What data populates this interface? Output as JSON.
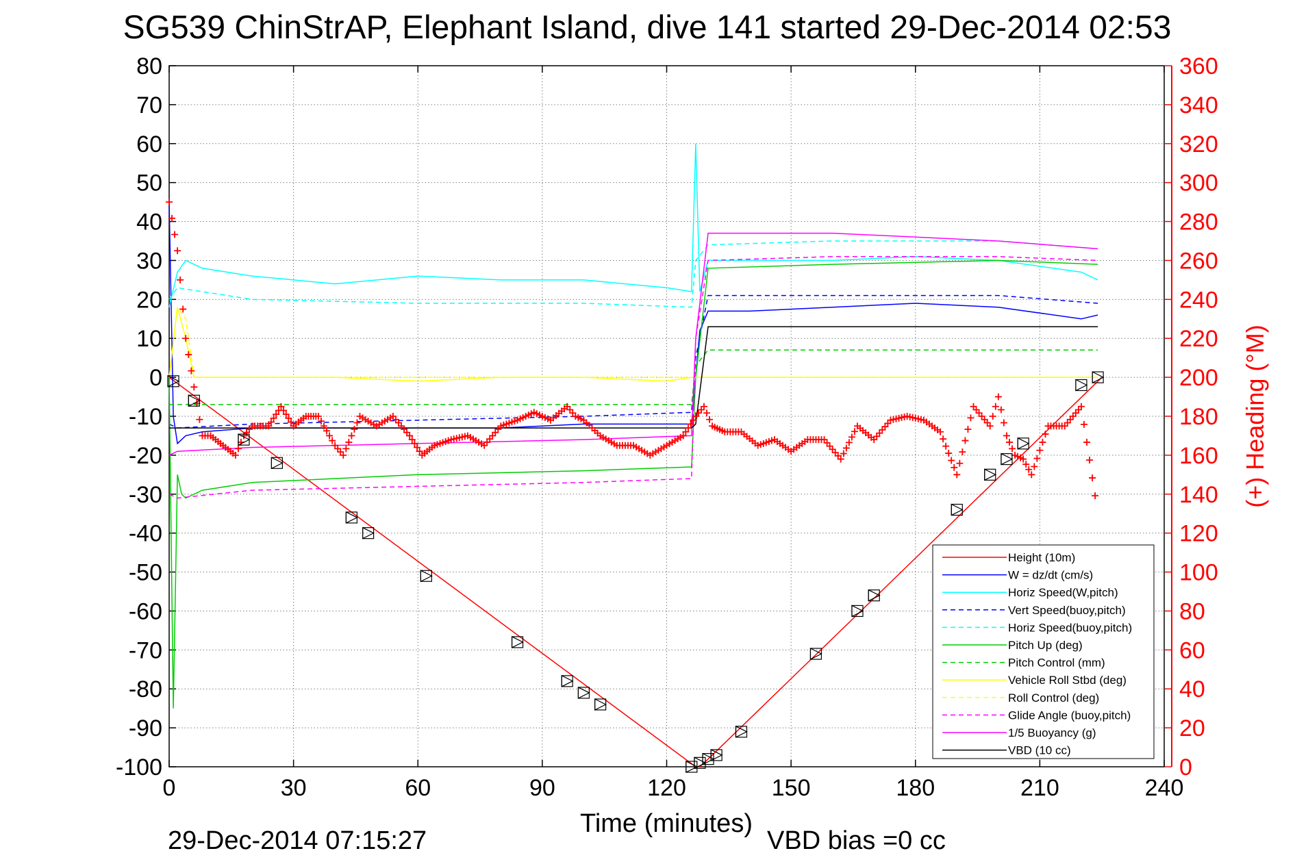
{
  "chart_data": {
    "type": "line",
    "title": "SG539 ChinStrAP, Elephant Island, dive 141 started 29-Dec-2014 02:53",
    "xlabel": "Time (minutes)",
    "ylabel": "",
    "ylabel_right": "(+) Heading (°M)",
    "xlim": [
      0,
      240
    ],
    "ylim": [
      -100,
      80
    ],
    "ylim_right": [
      0,
      360
    ],
    "x_ticks": [
      0,
      30,
      60,
      90,
      120,
      150,
      180,
      210,
      240
    ],
    "y_ticks": [
      80,
      70,
      60,
      50,
      40,
      30,
      20,
      10,
      0,
      -10,
      -20,
      -30,
      -40,
      -50,
      -60,
      -70,
      -80,
      -90,
      -100
    ],
    "y_ticks_right": [
      360,
      340,
      320,
      300,
      280,
      260,
      240,
      220,
      200,
      180,
      160,
      140,
      120,
      100,
      80,
      60,
      40,
      20,
      0
    ],
    "grid": true,
    "legend_position": "bottom-right",
    "footer_left": "29-Dec-2014 07:15:27",
    "footer_right": "VBD bias =0 cc",
    "series": [
      {
        "name": "Height (10m)",
        "color": "#ff0000",
        "style": "solid",
        "x": [
          0,
          127,
          128,
          131,
          225
        ],
        "y": [
          0,
          -100,
          -100,
          -97,
          0
        ]
      },
      {
        "name": "W = dz/dt (cm/s)",
        "color": "#0000ff",
        "style": "solid",
        "x": [
          0,
          1,
          2,
          4,
          8,
          20,
          40,
          60,
          80,
          100,
          120,
          126,
          127,
          128,
          130,
          140,
          160,
          180,
          200,
          220,
          224
        ],
        "y": [
          45,
          -10,
          -17,
          -15,
          -14,
          -13,
          -13,
          -13,
          -13,
          -12,
          -12,
          -12,
          0,
          12,
          17,
          17,
          18,
          19,
          18,
          15,
          16
        ]
      },
      {
        "name": "Horiz Speed(W,pitch)",
        "color": "#00ffff",
        "style": "solid",
        "x": [
          0,
          2,
          4,
          8,
          20,
          40,
          60,
          80,
          100,
          120,
          126,
          127,
          128,
          130,
          140,
          160,
          180,
          200,
          220,
          224
        ],
        "y": [
          18,
          27,
          30,
          28,
          26,
          24,
          26,
          25,
          25,
          23,
          22,
          60,
          22,
          30,
          30,
          30,
          31,
          30,
          27,
          25
        ]
      },
      {
        "name": "Vert Speed(buoy,pitch)",
        "color": "#0000ff",
        "style": "dashed",
        "x": [
          0,
          2,
          20,
          60,
          100,
          126,
          127,
          130,
          160,
          200,
          224
        ],
        "y": [
          -12,
          -13,
          -12,
          -11,
          -10,
          -9,
          5,
          21,
          21,
          21,
          19
        ]
      },
      {
        "name": "Horiz Speed(buoy,pitch)",
        "color": "#00ffff",
        "style": "dashed",
        "x": [
          0,
          2,
          20,
          60,
          100,
          126,
          127,
          130,
          160,
          200,
          224
        ],
        "y": [
          20,
          23,
          20,
          19,
          19,
          18,
          30,
          34,
          35,
          35,
          33
        ]
      },
      {
        "name": "Pitch Up (deg)",
        "color": "#00cc00",
        "style": "solid",
        "x": [
          0,
          1,
          2,
          3,
          4,
          8,
          20,
          60,
          100,
          126,
          127,
          130,
          160,
          200,
          224
        ],
        "y": [
          0,
          -85,
          -25,
          -30,
          -31,
          -29,
          -27,
          -25,
          -24,
          -23,
          0,
          28,
          29,
          30,
          29
        ]
      },
      {
        "name": "Pitch Control (mm)",
        "color": "#00cc00",
        "style": "dashed",
        "x": [
          0,
          2,
          20,
          60,
          100,
          126,
          127,
          130,
          160,
          200,
          224
        ],
        "y": [
          -7,
          -7,
          -7,
          -7,
          -7,
          -7,
          3,
          7,
          7,
          7,
          7
        ]
      },
      {
        "name": "Vehicle Roll Stbd (deg)",
        "color": "#ffff00",
        "style": "solid",
        "x": [
          0,
          2,
          4,
          6,
          10,
          20,
          40,
          60,
          80,
          100,
          120,
          126,
          130,
          160,
          200,
          224
        ],
        "y": [
          0,
          18,
          10,
          0,
          0,
          0,
          0,
          -1,
          0,
          0,
          -1,
          0,
          0,
          0,
          0,
          0
        ]
      },
      {
        "name": "Roll Control (deg)",
        "color": "#ffff00",
        "style": "dashed",
        "x": [
          0,
          2,
          4,
          6,
          20,
          60,
          100,
          126,
          130,
          160,
          200,
          224
        ],
        "y": [
          0,
          18,
          15,
          0,
          0,
          0,
          0,
          0,
          0,
          0,
          0,
          0
        ]
      },
      {
        "name": "Glide Angle (buoy,pitch)",
        "color": "#ff00ff",
        "style": "dashed",
        "x": [
          0,
          2,
          20,
          60,
          100,
          126,
          127,
          130,
          160,
          200,
          224
        ],
        "y": [
          -30,
          -31,
          -29,
          -28,
          -27,
          -26,
          10,
          30,
          31,
          31,
          30
        ]
      },
      {
        "name": "1/5 Buoyancy (g)",
        "color": "#ff00ff",
        "style": "solid",
        "x": [
          0,
          2,
          20,
          60,
          100,
          126,
          127,
          130,
          160,
          200,
          224
        ],
        "y": [
          -20,
          -19,
          -18,
          -17,
          -16,
          -15,
          10,
          37,
          37,
          35,
          33
        ]
      },
      {
        "name": "VBD (10 cc)",
        "color": "#000000",
        "style": "solid",
        "x": [
          0,
          126,
          127,
          130,
          224
        ],
        "y": [
          -13,
          -13,
          -12,
          13,
          13
        ]
      }
    ],
    "heading": {
      "name": "(+) Heading",
      "color": "#ff0000",
      "marker": "+",
      "x": [
        0,
        2,
        4,
        6,
        8,
        10,
        13,
        16,
        18,
        20,
        24,
        27,
        30,
        33,
        36,
        40,
        42,
        44,
        46,
        50,
        54,
        58,
        61,
        64,
        68,
        72,
        76,
        80,
        84,
        88,
        92,
        96,
        98,
        100,
        104,
        108,
        112,
        116,
        120,
        124,
        127,
        129,
        131,
        134,
        138,
        142,
        146,
        150,
        154,
        158,
        162,
        166,
        170,
        174,
        178,
        182,
        186,
        190,
        194,
        196,
        198,
        200,
        202,
        204,
        206,
        208,
        212,
        216,
        220,
        224
      ],
      "y": [
        290,
        265,
        220,
        195,
        170,
        170,
        165,
        160,
        170,
        175,
        175,
        185,
        175,
        180,
        180,
        165,
        160,
        170,
        180,
        175,
        180,
        170,
        160,
        165,
        168,
        170,
        165,
        175,
        178,
        182,
        178,
        185,
        180,
        178,
        170,
        165,
        165,
        160,
        165,
        170,
        180,
        185,
        175,
        172,
        172,
        165,
        168,
        162,
        168,
        168,
        158,
        175,
        168,
        178,
        180,
        178,
        172,
        150,
        185,
        180,
        175,
        190,
        170,
        160,
        158,
        150,
        175,
        175,
        185,
        130
      ]
    },
    "markers": {
      "name": "triangle markers",
      "color": "#000000",
      "x": [
        1,
        6,
        18,
        26,
        44,
        48,
        62,
        84,
        96,
        100,
        104,
        126,
        128,
        130,
        132,
        138,
        156,
        166,
        170,
        190,
        198,
        202,
        206,
        220,
        224
      ],
      "y": [
        -1,
        -6,
        -16,
        -22,
        -36,
        -40,
        -51,
        -68,
        -78,
        -81,
        -84,
        -100,
        -99,
        -98,
        -97,
        -91,
        -71,
        -60,
        -56,
        -34,
        -25,
        -21,
        -17,
        -2,
        0
      ]
    }
  }
}
